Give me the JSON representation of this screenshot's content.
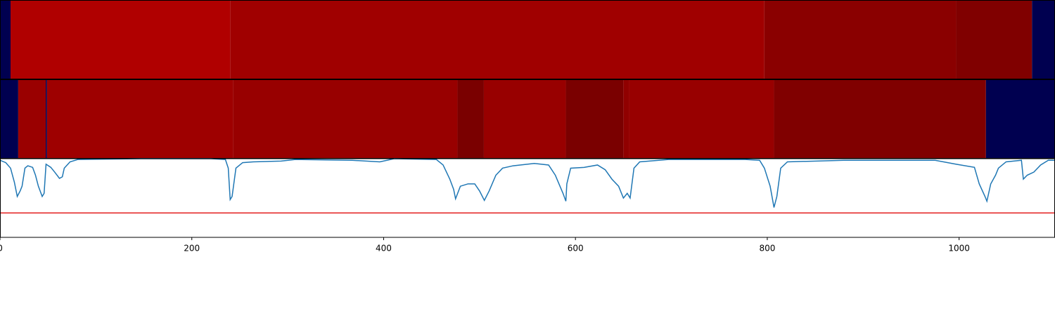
{
  "chart_data": [
    {
      "type": "heatmap",
      "xlim": [
        0,
        1100
      ],
      "edges": [
        0,
        11,
        240,
        797,
        997,
        1076,
        1100
      ],
      "colors": [
        "#000050",
        "#b00000",
        "#a00000",
        "#8a0000",
        "#800000",
        "#000050"
      ]
    },
    {
      "type": "heatmap",
      "xlim": [
        0,
        1100
      ],
      "edges": [
        0,
        19,
        47.7,
        49,
        243,
        477,
        504.5,
        590,
        650,
        656,
        807,
        1028,
        1100
      ],
      "colors": [
        "#000050",
        "#9a0000",
        "#000050",
        "#9e0000",
        "#980000",
        "#7a0000",
        "#980000",
        "#7a0000",
        "#900000",
        "#980000",
        "#800000",
        "#000050"
      ]
    },
    {
      "type": "line",
      "xlim": [
        0,
        1100
      ],
      "ylim": [
        0,
        1
      ],
      "xticks": [
        0,
        200,
        400,
        600,
        800,
        1000
      ],
      "hline": {
        "value": 0.31,
        "color": "#e32020"
      },
      "series": [
        {
          "color": "#1f77b4",
          "x": [
            0,
            6,
            11,
            15,
            18,
            21,
            23,
            26,
            29,
            34,
            37,
            40,
            44,
            46,
            48,
            53,
            57,
            62,
            65,
            67,
            73,
            81,
            147,
            220,
            235,
            238,
            240,
            242,
            246,
            253,
            264,
            293,
            308,
            367,
            396,
            411,
            455,
            462,
            469,
            473,
            475,
            480,
            488,
            495,
            500,
            505,
            510,
            517,
            524,
            535,
            557,
            572,
            579,
            587,
            590,
            591,
            595,
            609,
            623,
            631,
            638,
            645,
            650,
            654,
            657,
            661,
            667,
            697,
            777,
            792,
            797,
            803,
            807,
            810,
            814,
            821,
            880,
            975,
            997,
            1016,
            1021,
            1027,
            1029,
            1033,
            1038,
            1041,
            1049,
            1065,
            1067,
            1071,
            1078,
            1085,
            1093,
            1100
          ],
          "values": [
            0.98,
            0.95,
            0.88,
            0.7,
            0.52,
            0.59,
            0.65,
            0.88,
            0.91,
            0.89,
            0.79,
            0.65,
            0.52,
            0.56,
            0.93,
            0.89,
            0.83,
            0.75,
            0.77,
            0.88,
            0.96,
            0.99,
            1.0,
            1.0,
            0.99,
            0.88,
            0.48,
            0.52,
            0.88,
            0.95,
            0.96,
            0.97,
            0.99,
            0.98,
            0.96,
            1.0,
            0.99,
            0.92,
            0.74,
            0.61,
            0.49,
            0.65,
            0.68,
            0.68,
            0.59,
            0.47,
            0.59,
            0.79,
            0.88,
            0.91,
            0.94,
            0.92,
            0.79,
            0.56,
            0.46,
            0.68,
            0.88,
            0.89,
            0.92,
            0.86,
            0.74,
            0.65,
            0.5,
            0.56,
            0.5,
            0.88,
            0.96,
            0.99,
            0.99,
            0.98,
            0.88,
            0.65,
            0.38,
            0.52,
            0.88,
            0.96,
            0.98,
            0.98,
            0.93,
            0.89,
            0.68,
            0.52,
            0.46,
            0.68,
            0.79,
            0.88,
            0.96,
            0.98,
            0.74,
            0.79,
            0.83,
            0.92,
            0.98,
            0.98
          ]
        }
      ]
    }
  ]
}
